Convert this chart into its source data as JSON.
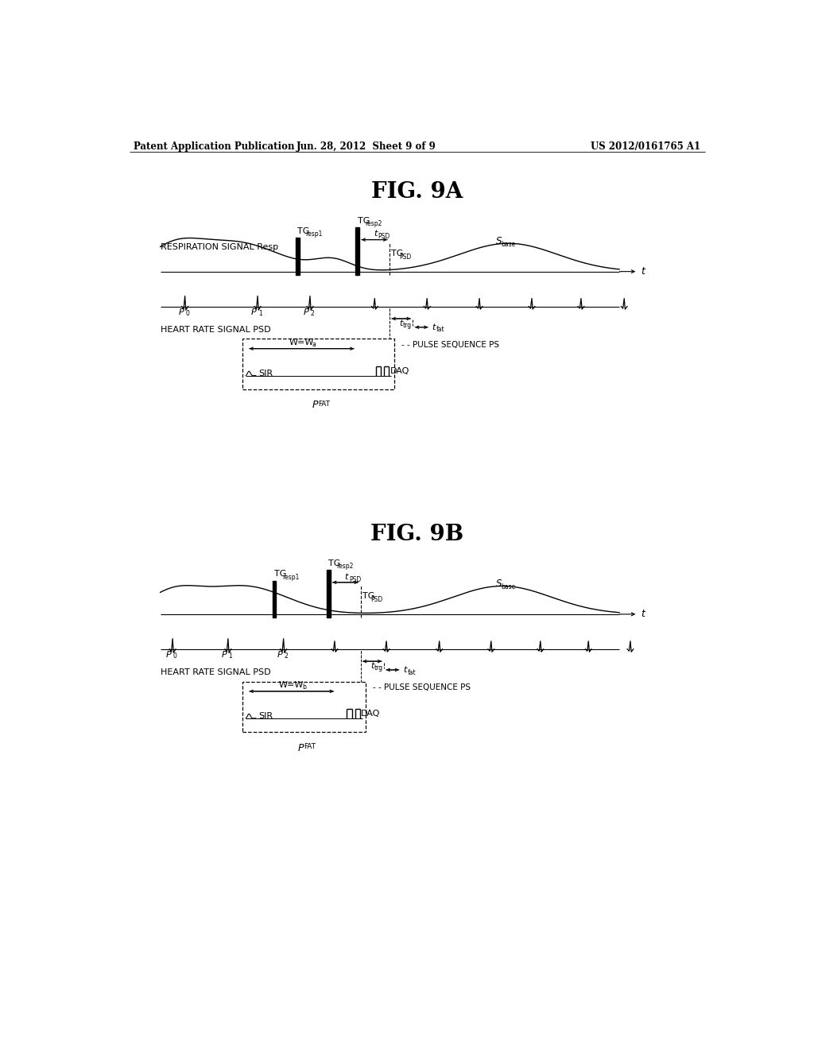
{
  "bg_color": "#ffffff",
  "header_left": "Patent Application Publication",
  "header_center": "Jun. 28, 2012  Sheet 9 of 9",
  "header_right": "US 2012/0161765 A1",
  "fig9a_title": "FIG. 9A",
  "fig9b_title": "FIG. 9B",
  "label_resp_signal": "RESPIRATION SIGNAL Resp",
  "label_hr_signal": "HEART RATE SIGNAL PSD",
  "label_pulse_seq": "PULSE SEQUENCE PS",
  "label_sir": "SIR",
  "label_daq": "DAQ"
}
